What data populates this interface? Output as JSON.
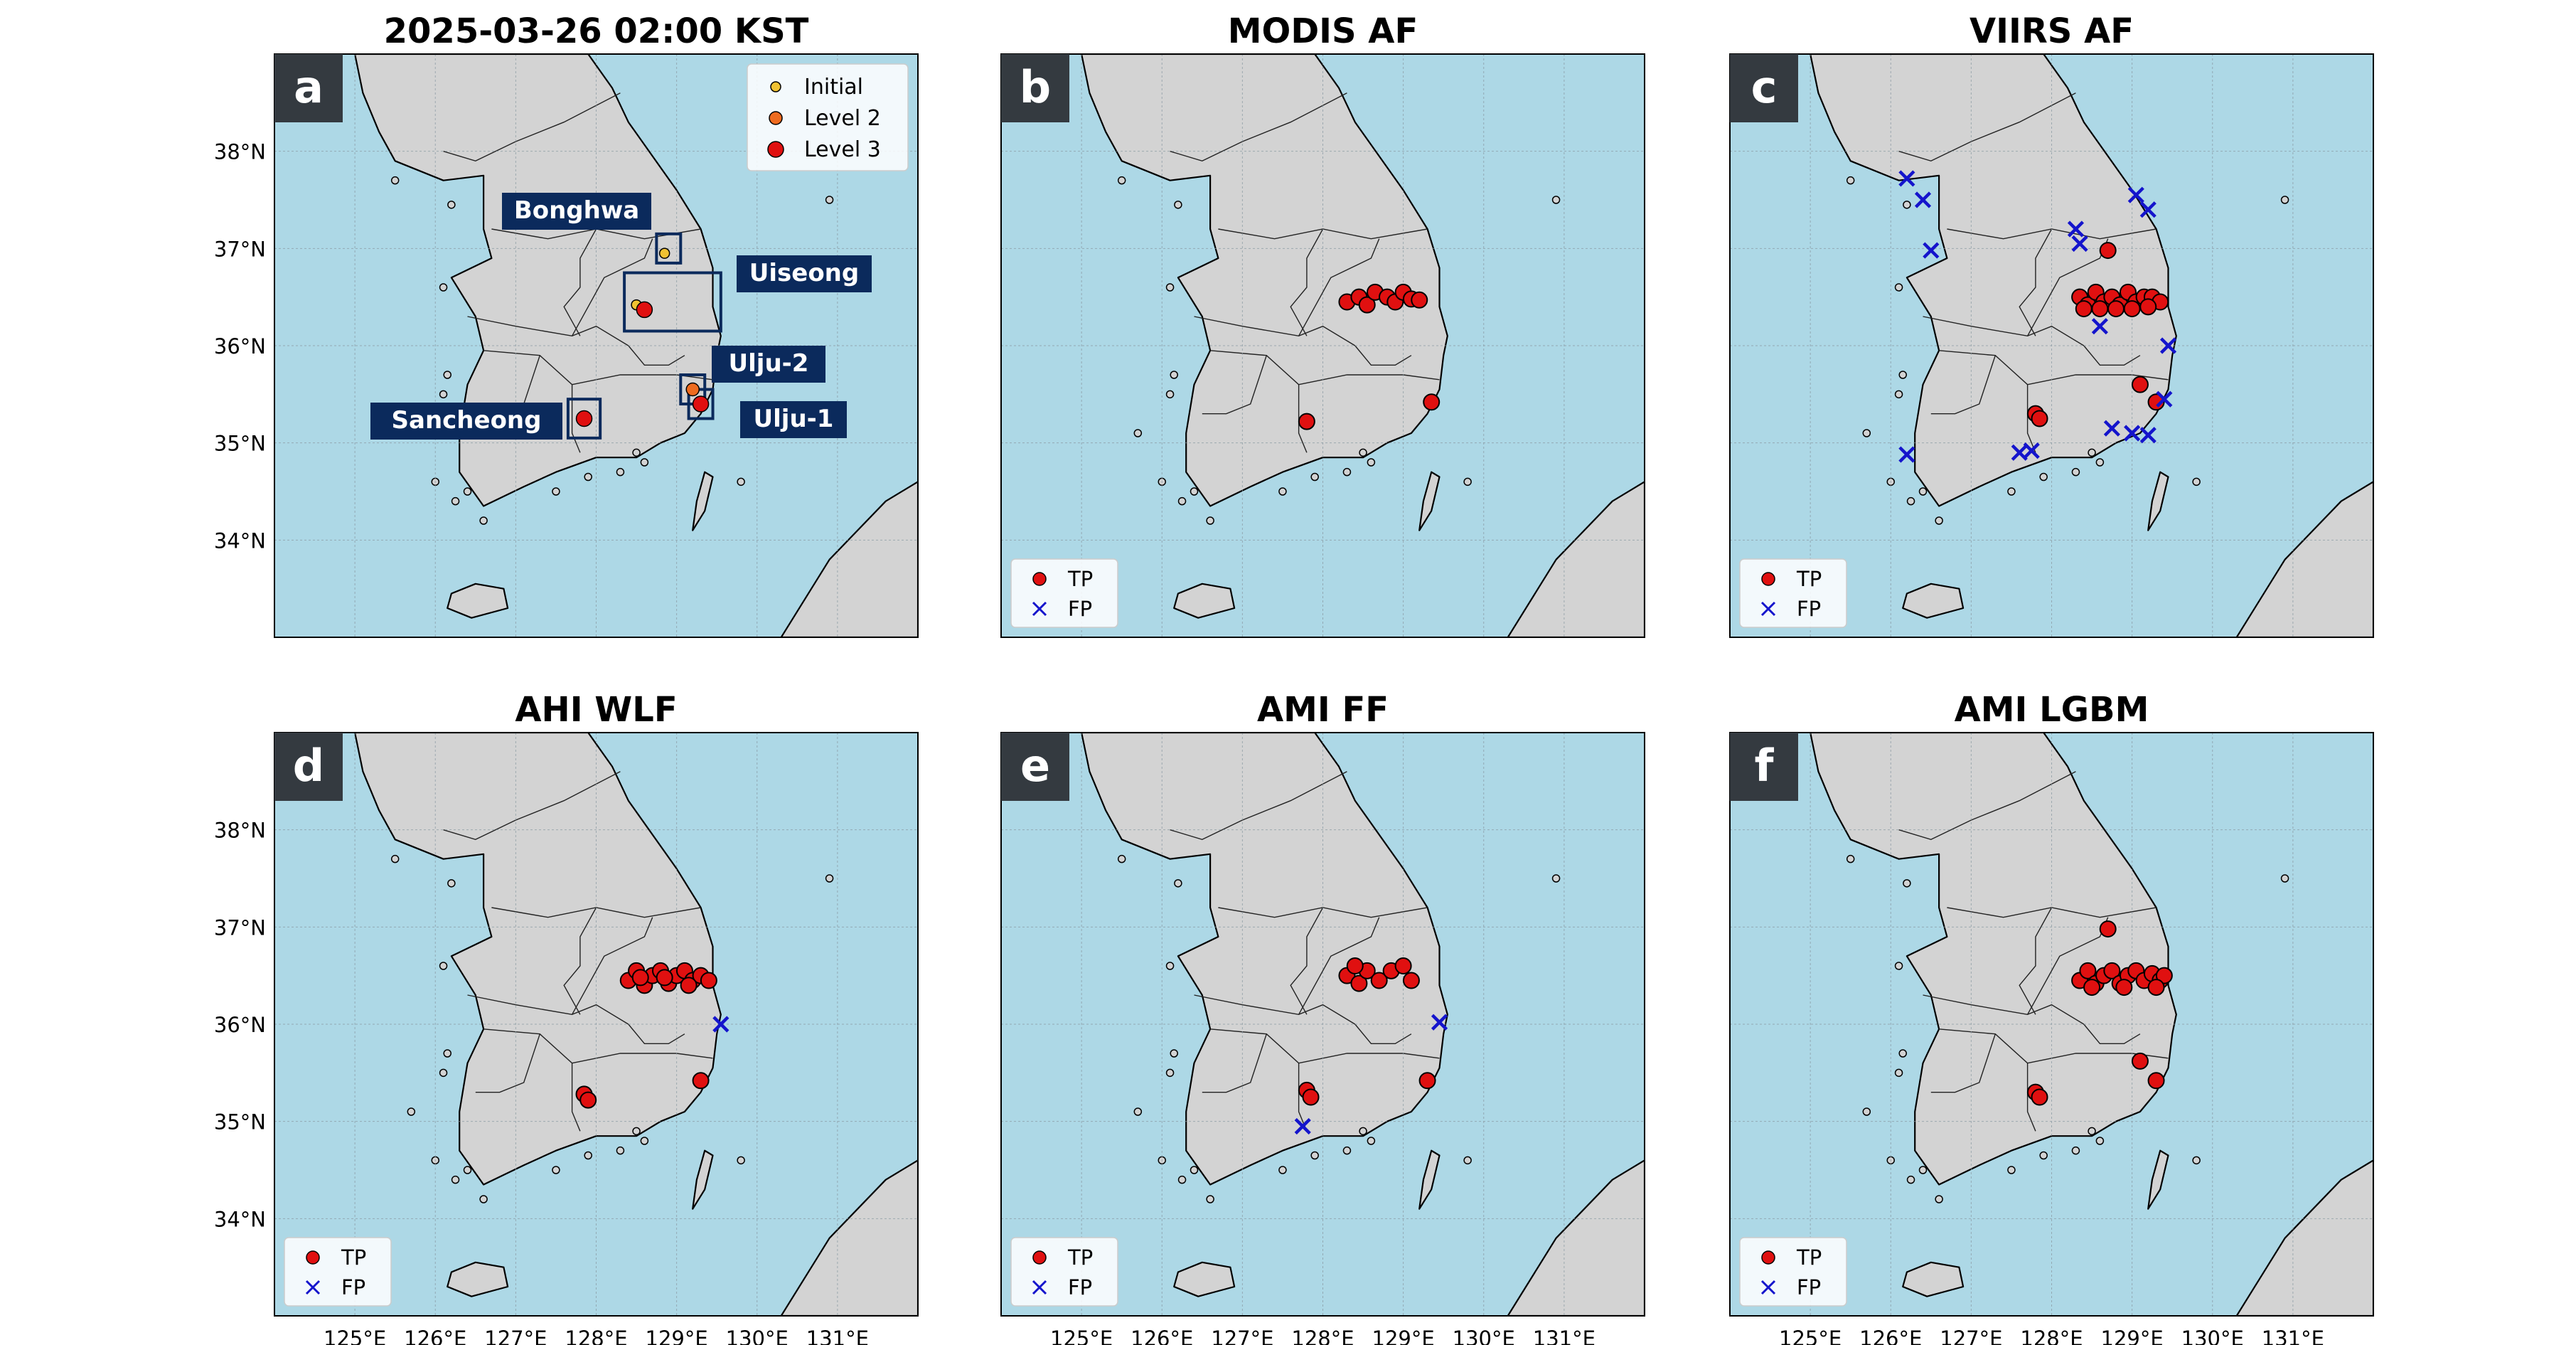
{
  "figure": {
    "panels": [
      {
        "letter": "a",
        "title": "2025-03-26 02:00 KST",
        "show_y": true,
        "show_x": false,
        "legend": "severity",
        "boxes": [
          {
            "label": "Bonghwa",
            "lon": 128.9,
            "lat": 37.0,
            "w": 0.3,
            "h": 0.3
          },
          {
            "label": "Uiseong",
            "lon": 128.95,
            "lat": 36.45,
            "w": 1.2,
            "h": 0.6
          },
          {
            "label": "Ulju-2",
            "lon": 129.2,
            "lat": 35.55,
            "w": 0.3,
            "h": 0.3
          },
          {
            "label": "Ulju-1",
            "lon": 129.3,
            "lat": 35.4,
            "w": 0.3,
            "h": 0.3
          },
          {
            "label": "Sancheong",
            "lon": 127.85,
            "lat": 35.25,
            "w": 0.4,
            "h": 0.4
          }
        ],
        "tp": [],
        "fp": [],
        "sev": [
          {
            "lon": 128.85,
            "lat": 36.95,
            "level": "initial"
          },
          {
            "lon": 128.5,
            "lat": 36.42,
            "level": "initial"
          },
          {
            "lon": 128.6,
            "lat": 36.37,
            "level": "level3"
          },
          {
            "lon": 129.2,
            "lat": 35.55,
            "level": "level2"
          },
          {
            "lon": 129.3,
            "lat": 35.4,
            "level": "level3"
          },
          {
            "lon": 127.85,
            "lat": 35.25,
            "level": "level3"
          }
        ]
      },
      {
        "letter": "b",
        "title": "MODIS AF",
        "show_y": false,
        "show_x": false,
        "legend": "tpfp",
        "boxes": [],
        "tp": [
          [
            128.3,
            36.45
          ],
          [
            128.45,
            36.5
          ],
          [
            128.55,
            36.42
          ],
          [
            128.65,
            36.55
          ],
          [
            128.8,
            36.5
          ],
          [
            128.9,
            36.45
          ],
          [
            129.0,
            36.55
          ],
          [
            129.1,
            36.48
          ],
          [
            129.2,
            36.47
          ],
          [
            127.8,
            35.22
          ],
          [
            129.35,
            35.42
          ]
        ],
        "fp": [],
        "sev": []
      },
      {
        "letter": "c",
        "title": "VIIRS AF",
        "show_y": false,
        "show_x": false,
        "legend": "tpfp",
        "boxes": [],
        "tp": [
          [
            128.35,
            36.5
          ],
          [
            128.45,
            36.42
          ],
          [
            128.55,
            36.55
          ],
          [
            128.65,
            36.45
          ],
          [
            128.75,
            36.5
          ],
          [
            128.85,
            36.42
          ],
          [
            128.95,
            36.55
          ],
          [
            129.05,
            36.45
          ],
          [
            129.15,
            36.5
          ],
          [
            129.25,
            36.5
          ],
          [
            129.35,
            36.45
          ],
          [
            128.4,
            36.38
          ],
          [
            128.6,
            36.38
          ],
          [
            128.8,
            36.38
          ],
          [
            129.0,
            36.38
          ],
          [
            129.2,
            36.4
          ],
          [
            128.7,
            36.98
          ],
          [
            127.8,
            35.3
          ],
          [
            127.85,
            35.25
          ],
          [
            129.1,
            35.6
          ],
          [
            129.3,
            35.42
          ]
        ],
        "fp": [
          [
            126.2,
            37.72
          ],
          [
            126.4,
            37.5
          ],
          [
            126.5,
            36.98
          ],
          [
            128.3,
            37.2
          ],
          [
            128.35,
            37.05
          ],
          [
            129.05,
            37.55
          ],
          [
            129.2,
            37.4
          ],
          [
            128.6,
            36.2
          ],
          [
            129.45,
            36.0
          ],
          [
            126.2,
            34.88
          ],
          [
            127.6,
            34.9
          ],
          [
            127.75,
            34.92
          ],
          [
            128.75,
            35.15
          ],
          [
            129.0,
            35.1
          ],
          [
            129.2,
            35.08
          ],
          [
            129.4,
            35.45
          ]
        ],
        "sev": []
      },
      {
        "letter": "d",
        "title": "AHI WLF",
        "show_y": true,
        "show_x": true,
        "legend": "tpfp",
        "boxes": [],
        "tp": [
          [
            128.4,
            36.45
          ],
          [
            128.5,
            36.55
          ],
          [
            128.6,
            36.4
          ],
          [
            128.7,
            36.5
          ],
          [
            128.8,
            36.55
          ],
          [
            128.9,
            36.42
          ],
          [
            129.0,
            36.5
          ],
          [
            129.1,
            36.55
          ],
          [
            129.2,
            36.45
          ],
          [
            129.3,
            36.5
          ],
          [
            129.4,
            36.45
          ],
          [
            128.55,
            36.48
          ],
          [
            128.85,
            36.48
          ],
          [
            129.15,
            36.4
          ],
          [
            127.85,
            35.28
          ],
          [
            127.9,
            35.22
          ],
          [
            129.3,
            35.42
          ]
        ],
        "fp": [
          [
            129.55,
            36.0
          ]
        ],
        "sev": []
      },
      {
        "letter": "e",
        "title": "AMI FF",
        "show_y": false,
        "show_x": true,
        "legend": "tpfp",
        "boxes": [],
        "tp": [
          [
            128.3,
            36.5
          ],
          [
            128.45,
            36.42
          ],
          [
            128.55,
            36.55
          ],
          [
            128.7,
            36.45
          ],
          [
            128.85,
            36.55
          ],
          [
            129.0,
            36.6
          ],
          [
            129.1,
            36.45
          ],
          [
            128.4,
            36.6
          ],
          [
            127.8,
            35.32
          ],
          [
            127.85,
            35.25
          ],
          [
            129.3,
            35.42
          ]
        ],
        "fp": [
          [
            129.45,
            36.02
          ],
          [
            127.75,
            34.95
          ]
        ],
        "sev": []
      },
      {
        "letter": "f",
        "title": "AMI LGBM",
        "show_y": false,
        "show_x": true,
        "legend": "tpfp",
        "boxes": [],
        "tp": [
          [
            128.35,
            36.45
          ],
          [
            128.45,
            36.55
          ],
          [
            128.55,
            36.42
          ],
          [
            128.65,
            36.5
          ],
          [
            128.75,
            36.55
          ],
          [
            128.85,
            36.42
          ],
          [
            128.95,
            36.5
          ],
          [
            129.05,
            36.55
          ],
          [
            129.15,
            36.45
          ],
          [
            129.25,
            36.52
          ],
          [
            129.35,
            36.45
          ],
          [
            129.4,
            36.5
          ],
          [
            128.5,
            36.38
          ],
          [
            128.9,
            36.38
          ],
          [
            129.3,
            36.38
          ],
          [
            128.7,
            36.98
          ],
          [
            127.8,
            35.3
          ],
          [
            127.85,
            35.25
          ],
          [
            129.1,
            35.62
          ],
          [
            129.3,
            35.42
          ]
        ],
        "fp": [],
        "sev": []
      }
    ]
  },
  "map": {
    "lon_range": [
      124,
      132
    ],
    "lat_range": [
      33,
      39
    ],
    "lat_ticks": [
      {
        "v": 38,
        "label": "38°N"
      },
      {
        "v": 37,
        "label": "37°N"
      },
      {
        "v": 36,
        "label": "36°N"
      },
      {
        "v": 35,
        "label": "35°N"
      },
      {
        "v": 34,
        "label": "34°N"
      }
    ],
    "lon_ticks": [
      {
        "v": 125,
        "label": "125°E"
      },
      {
        "v": 126,
        "label": "126°E"
      },
      {
        "v": 127,
        "label": "127°E"
      },
      {
        "v": 128,
        "label": "128°E"
      },
      {
        "v": 129,
        "label": "129°E"
      },
      {
        "v": 130,
        "label": "130°E"
      },
      {
        "v": 131,
        "label": "131°E"
      }
    ],
    "korea": [
      [
        125.1,
        38.6
      ],
      [
        125.3,
        38.2
      ],
      [
        125.5,
        37.9
      ],
      [
        126.1,
        37.7
      ],
      [
        126.6,
        37.75
      ],
      [
        126.6,
        37.2
      ],
      [
        126.7,
        36.9
      ],
      [
        126.2,
        36.7
      ],
      [
        126.5,
        36.3
      ],
      [
        126.6,
        35.95
      ],
      [
        126.4,
        35.6
      ],
      [
        126.3,
        35.1
      ],
      [
        126.3,
        34.7
      ],
      [
        126.6,
        34.35
      ],
      [
        127.1,
        34.55
      ],
      [
        127.5,
        34.7
      ],
      [
        128.0,
        34.85
      ],
      [
        128.5,
        34.85
      ],
      [
        128.8,
        35.0
      ],
      [
        129.1,
        35.1
      ],
      [
        129.3,
        35.3
      ],
      [
        129.45,
        35.55
      ],
      [
        129.5,
        35.9
      ],
      [
        129.55,
        36.1
      ],
      [
        129.45,
        36.4
      ],
      [
        129.45,
        36.8
      ],
      [
        129.3,
        37.2
      ],
      [
        129.0,
        37.6
      ],
      [
        128.7,
        37.95
      ],
      [
        128.4,
        38.3
      ],
      [
        128.2,
        38.65
      ],
      [
        127.9,
        39.0
      ],
      [
        125.0,
        39.0
      ]
    ],
    "jeju": [
      [
        126.15,
        33.3
      ],
      [
        126.45,
        33.2
      ],
      [
        126.9,
        33.3
      ],
      [
        126.85,
        33.5
      ],
      [
        126.5,
        33.55
      ],
      [
        126.2,
        33.45
      ]
    ],
    "japan": [
      [
        130.3,
        33.0
      ],
      [
        130.9,
        33.8
      ],
      [
        131.6,
        34.4
      ],
      [
        132.0,
        34.6
      ],
      [
        132.0,
        33.0
      ]
    ],
    "tsushima": [
      [
        129.2,
        34.1
      ],
      [
        129.35,
        34.3
      ],
      [
        129.45,
        34.65
      ],
      [
        129.35,
        34.7
      ],
      [
        129.25,
        34.4
      ]
    ],
    "provinces": [
      [
        [
          126.7,
          37.2
        ],
        [
          127.4,
          37.1
        ],
        [
          128.0,
          37.2
        ],
        [
          128.6,
          37.1
        ],
        [
          129.3,
          37.2
        ]
      ],
      [
        [
          126.4,
          36.3
        ],
        [
          127.0,
          36.2
        ],
        [
          127.7,
          36.1
        ],
        [
          128.0,
          36.2
        ],
        [
          128.4,
          36.0
        ]
      ],
      [
        [
          126.6,
          35.95
        ],
        [
          127.3,
          35.9
        ],
        [
          127.7,
          35.6
        ],
        [
          127.7,
          35.1
        ],
        [
          127.8,
          34.9
        ]
      ],
      [
        [
          127.7,
          36.1
        ],
        [
          128.1,
          36.7
        ],
        [
          128.6,
          36.9
        ],
        [
          128.7,
          37.1
        ]
      ],
      [
        [
          128.0,
          37.2
        ],
        [
          127.8,
          36.9
        ],
        [
          127.8,
          36.6
        ],
        [
          127.6,
          36.4
        ],
        [
          127.8,
          36.1
        ]
      ],
      [
        [
          127.7,
          35.6
        ],
        [
          128.3,
          35.7
        ],
        [
          129.0,
          35.7
        ],
        [
          129.45,
          35.65
        ]
      ],
      [
        [
          128.4,
          36.0
        ],
        [
          128.6,
          35.8
        ],
        [
          128.9,
          35.8
        ],
        [
          129.1,
          35.9
        ]
      ],
      [
        [
          127.3,
          35.9
        ],
        [
          127.1,
          35.4
        ],
        [
          126.8,
          35.3
        ],
        [
          126.5,
          35.3
        ]
      ],
      [
        [
          126.1,
          38.0
        ],
        [
          126.5,
          37.9
        ],
        [
          127.0,
          38.1
        ],
        [
          127.6,
          38.3
        ],
        [
          128.3,
          38.6
        ]
      ]
    ],
    "islands": [
      [
        125.5,
        37.7
      ],
      [
        126.1,
        36.6
      ],
      [
        126.1,
        35.5
      ],
      [
        126.0,
        34.6
      ],
      [
        126.25,
        34.4
      ],
      [
        126.6,
        34.2
      ],
      [
        127.5,
        34.5
      ],
      [
        127.9,
        34.65
      ],
      [
        128.3,
        34.7
      ],
      [
        128.6,
        34.8
      ],
      [
        128.5,
        34.9
      ],
      [
        129.8,
        34.6
      ],
      [
        130.9,
        37.5
      ],
      [
        125.7,
        35.1
      ],
      [
        126.15,
        35.7
      ],
      [
        126.2,
        37.45
      ],
      [
        126.4,
        34.5
      ]
    ]
  },
  "legends": {
    "severity": [
      {
        "key": "initial",
        "label": "Initial",
        "color": "#f1c232"
      },
      {
        "key": "level2",
        "label": "Level 2",
        "color": "#ee6b1f"
      },
      {
        "key": "level3",
        "label": "Level 3",
        "color": "#e01010"
      }
    ],
    "tp_label": "TP",
    "fp_label": "FP"
  },
  "colors": {
    "sea": "#add8e6",
    "land": "#d3d3d3",
    "tp": "#e01010",
    "fp": "#1414cc",
    "box": "#0b2a5c",
    "label_bg": "#0b2a5c",
    "letter_bg": "#343a40"
  }
}
